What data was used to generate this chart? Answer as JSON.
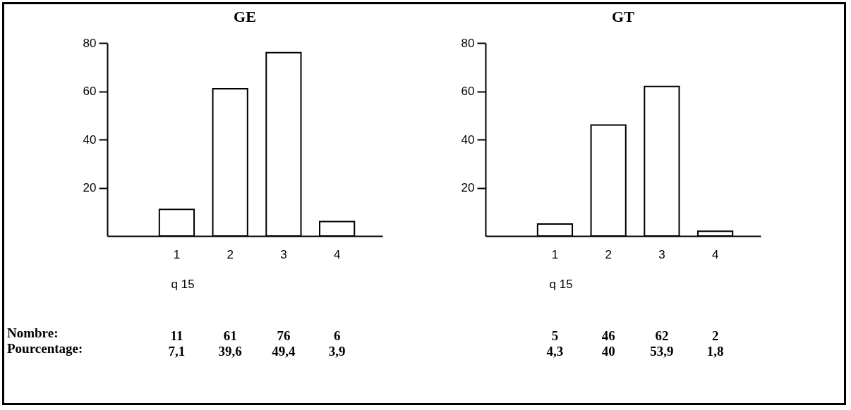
{
  "chart_data": [
    {
      "type": "bar",
      "title": "GE",
      "xlabel": "q 15",
      "categories": [
        "1",
        "2",
        "3",
        "4"
      ],
      "values": [
        11,
        61,
        76,
        6
      ],
      "color": "#ffffff",
      "ylim": [
        0,
        80
      ],
      "yticks": [
        20,
        40,
        60,
        80
      ],
      "data_labels": true,
      "annotations": [
        "Nombre:",
        "Pourcentage:",
        "7,1",
        "39,6",
        "49,4",
        "3,9"
      ]
    },
    {
      "type": "bar",
      "title": "GT",
      "xlabel": "q 15",
      "categories": [
        "1",
        "2",
        "3",
        "4"
      ],
      "values": [
        5,
        46,
        62,
        2
      ],
      "color": "#ffffff",
      "ylim": [
        0,
        80
      ],
      "yticks": [
        20,
        40,
        60,
        80
      ],
      "data_labels": true,
      "annotations": [
        "4,3",
        "40",
        "53,9",
        "1,8"
      ]
    }
  ]
}
